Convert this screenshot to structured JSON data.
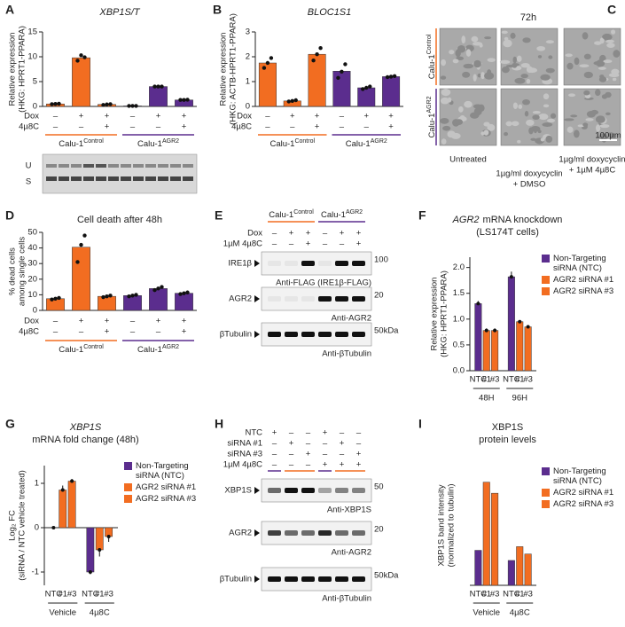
{
  "chart_data": [
    {
      "type": "bar",
      "letter": "A",
      "title": "XBP1S/T",
      "ylabel": [
        "Relative expression",
        "(HKG: HPRT1-PPARA)"
      ],
      "ylim": [
        0,
        15
      ],
      "yticks": [
        0,
        5,
        10,
        15
      ],
      "groups": [
        {
          "name": {
            "base": "Calu-1",
            "sup": "Control"
          },
          "color": "#f26d21",
          "values": [
            0.5,
            9.8,
            0.4
          ],
          "replicates": [
            [
              0.45,
              0.5,
              0.55
            ],
            [
              9.2,
              10.3,
              9.9
            ],
            [
              0.3,
              0.4,
              0.45
            ]
          ]
        },
        {
          "name": {
            "base": "Calu-1",
            "sup": "AGR2"
          },
          "color": "#5b2d8e",
          "values": [
            0.1,
            4.0,
            1.3
          ],
          "replicates": [
            [
              0.1,
              0.1,
              0.1
            ],
            [
              4.0,
              4.0,
              4.0
            ],
            [
              1.3,
              1.3,
              1.35
            ]
          ]
        }
      ],
      "conditions": [
        {
          "label": "Dox",
          "states": [
            "–",
            "+",
            "+",
            "–",
            "+",
            "+"
          ]
        },
        {
          "label": "4µ8C",
          "states": [
            "–",
            "–",
            "+",
            "–",
            "–",
            "+"
          ]
        }
      ]
    },
    {
      "type": "bar",
      "letter": "B",
      "title": "BLOC1S1",
      "ylabel": [
        "Relative expression",
        "(HKG: ACTB-HPRT1-PPARA)"
      ],
      "ylim": [
        0,
        3
      ],
      "yticks": [
        0,
        1,
        2,
        3
      ],
      "groups": [
        {
          "name": {
            "base": "Calu-1",
            "sup": "Control"
          },
          "color": "#f26d21",
          "values": [
            1.75,
            0.22,
            2.1
          ],
          "replicates": [
            [
              1.55,
              1.75,
              1.95
            ],
            [
              0.2,
              0.22,
              0.25
            ],
            [
              1.85,
              2.1,
              2.35
            ]
          ]
        },
        {
          "name": {
            "base": "Calu-1",
            "sup": "AGR2"
          },
          "color": "#5b2d8e",
          "values": [
            1.42,
            0.75,
            1.2
          ],
          "replicates": [
            [
              1.15,
              1.4,
              1.7
            ],
            [
              0.7,
              0.75,
              0.8
            ],
            [
              1.18,
              1.2,
              1.22
            ]
          ]
        }
      ],
      "conditions": [
        {
          "label": "Dox",
          "states": [
            "–",
            "+",
            "+",
            "–",
            "+",
            "+"
          ]
        },
        {
          "label": "4µ8C",
          "states": [
            "–",
            "–",
            "+",
            "–",
            "–",
            "+"
          ]
        }
      ]
    },
    {
      "type": "bar",
      "letter": "D",
      "title": "Cell death after 48h",
      "ylabel": [
        "% dead cells",
        "among single cells"
      ],
      "ylim": [
        0,
        50
      ],
      "yticks": [
        0,
        10,
        20,
        30,
        40,
        50
      ],
      "groups": [
        {
          "name": {
            "base": "Calu-1",
            "sup": "Control"
          },
          "color": "#f26d21",
          "values": [
            7.5,
            40.5,
            9
          ],
          "replicates": [
            [
              7,
              7.5,
              8
            ],
            [
              31,
              42,
              48
            ],
            [
              8.5,
              9,
              9.5
            ]
          ]
        },
        {
          "name": {
            "base": "Calu-1",
            "sup": "AGR2"
          },
          "color": "#5b2d8e",
          "values": [
            9.5,
            14,
            11
          ],
          "replicates": [
            [
              9,
              9.5,
              10
            ],
            [
              13,
              14,
              15
            ],
            [
              10.5,
              11,
              11.5
            ]
          ]
        }
      ],
      "conditions": [
        {
          "label": "Dox",
          "states": [
            "–",
            "+",
            "+",
            "–",
            "+",
            "+"
          ]
        },
        {
          "label": "4µ8C",
          "states": [
            "–",
            "–",
            "+",
            "–",
            "–",
            "+"
          ]
        }
      ]
    },
    {
      "type": "grouped_bar",
      "letter": "F",
      "title_italic": "AGR2",
      "title": "mRNA knockdown",
      "subtitle": "(LS174T cells)",
      "ylabel": [
        "Relative expression",
        "(HKG: HPRT1-PPARA)"
      ],
      "ylim": [
        0,
        2.2
      ],
      "yticks": [
        {
          "value": 0,
          "label": "0.0"
        },
        {
          "value": 0.5,
          "label": "0.5"
        },
        {
          "value": 1,
          "label": "1.0"
        },
        {
          "value": 1.5,
          "label": "1.5"
        },
        {
          "value": 2,
          "label": "2.0"
        }
      ],
      "categories": [
        "48H",
        "96H"
      ],
      "series": [
        {
          "name": "Non-Targeting siRNA (NTC)",
          "short": "NTC",
          "color": "#5b2d8e",
          "values": [
            1.3,
            1.82
          ],
          "errors": [
            0.05,
            0.1
          ]
        },
        {
          "name": "AGR2 siRNA #1",
          "short": "#1",
          "color": "#f26d21",
          "values": [
            0.78,
            0.95
          ],
          "errors": [
            0.04,
            0.03
          ]
        },
        {
          "name": "AGR2 siRNA #3",
          "short": "#3",
          "color": "#f26d21",
          "values": [
            0.78,
            0.85
          ],
          "errors": [
            0.04,
            0.03
          ]
        }
      ]
    },
    {
      "type": "grouped_bar",
      "letter": "G",
      "title_italic": "XBP1S",
      "subtitle": "mRNA fold change (48h)",
      "ylabel": [
        "Log₂ FC",
        "(siRNA / NTC vehicle treated)"
      ],
      "ylim": [
        -1.3,
        1.4
      ],
      "yticks": [
        -1,
        0,
        1
      ],
      "categories": [
        "Vehicle",
        "4µ8C"
      ],
      "series": [
        {
          "name": "Non-Targeting siRNA (NTC)",
          "short": "NTC",
          "color": "#5b2d8e",
          "values": [
            0,
            -1.0
          ],
          "errors": [
            0.02,
            0.05
          ]
        },
        {
          "name": "AGR2 siRNA #1",
          "short": "#1",
          "color": "#f26d21",
          "values": [
            0.85,
            -0.5
          ],
          "errors": [
            0.1,
            0.15
          ]
        },
        {
          "name": "AGR2 siRNA #3",
          "short": "#3",
          "color": "#f26d21",
          "values": [
            1.05,
            -0.2
          ],
          "errors": [
            0.05,
            0.12
          ]
        }
      ]
    },
    {
      "type": "grouped_bar",
      "letter": "I",
      "title": "XBP1S",
      "subtitle": "protein levels",
      "ylabel": [
        "XBP1S band intensity",
        "(normalized to tubulin)"
      ],
      "ylim": [
        0,
        1.3
      ],
      "yticks": [],
      "categories": [
        "Vehicle",
        "4µ8C"
      ],
      "series": [
        {
          "name": "Non-Targeting siRNA (NTC)",
          "short": "NTC",
          "color": "#5b2d8e",
          "values": [
            0.38,
            0.27
          ]
        },
        {
          "name": "AGR2 siRNA #1",
          "short": "#1",
          "color": "#f26d21",
          "values": [
            1.12,
            0.42
          ]
        },
        {
          "name": "AGR2 siRNA #3",
          "short": "#3",
          "color": "#f26d21",
          "values": [
            1.0,
            0.34
          ]
        }
      ]
    }
  ],
  "gel": {
    "labels": [
      "U",
      "S"
    ]
  },
  "micrograph_panel": {
    "letter": "C",
    "title": "72h",
    "rows": [
      {
        "base": "Calu-1",
        "sup": "Control"
      },
      {
        "base": "Calu-1",
        "sup": "AGR2"
      }
    ],
    "columns": [
      [
        "Untreated"
      ],
      [
        "1µg/ml doxycyclin",
        "+ DMSO"
      ],
      [
        "1µg/ml doxycyclin",
        "+ 1µM 4µ8C"
      ]
    ],
    "scale_bar": "100µm"
  },
  "blot_panels": [
    {
      "letter": "E",
      "groups": [
        {
          "base": "Calu-1",
          "sup": "Control",
          "color": "#f26d21"
        },
        {
          "base": "Calu-1",
          "sup": "AGR2",
          "color": "#5b2d8e"
        }
      ],
      "conditions": [
        {
          "label": "Dox",
          "states": [
            "–",
            "+",
            "+",
            "–",
            "+",
            "+"
          ]
        },
        {
          "label": "1µM 4µ8C",
          "states": [
            "–",
            "–",
            "+",
            "–",
            "–",
            "+"
          ]
        }
      ],
      "bands": [
        {
          "name": "IRE1β",
          "antibody": "Anti-FLAG (IRE1β-FLAG)",
          "marker": "100"
        },
        {
          "name": "AGR2",
          "antibody": "Anti-AGR2",
          "marker": "20"
        },
        {
          "name": "βTubulin",
          "antibody": "Anti-βTubulin",
          "marker": "50kDa"
        }
      ]
    },
    {
      "letter": "H",
      "conditions": [
        {
          "label": "NTC",
          "states": [
            "+",
            "–",
            "–",
            "+",
            "–",
            "–"
          ]
        },
        {
          "label": "siRNA #1",
          "states": [
            "–",
            "+",
            "–",
            "–",
            "+",
            "–"
          ]
        },
        {
          "label": "siRNA #3",
          "states": [
            "–",
            "–",
            "+",
            "–",
            "–",
            "+"
          ]
        },
        {
          "label": "1µM 4µ8C",
          "states": [
            "–",
            "–",
            "–",
            "+",
            "+",
            "+"
          ]
        }
      ],
      "bands": [
        {
          "name": "XBP1S",
          "antibody": "Anti-XBP1S",
          "marker": "50"
        },
        {
          "name": "AGR2",
          "antibody": "Anti-AGR2",
          "marker": "20"
        },
        {
          "name": "βTubulin",
          "antibody": "Anti-βTubulin",
          "marker": "50kDa"
        }
      ]
    }
  ]
}
